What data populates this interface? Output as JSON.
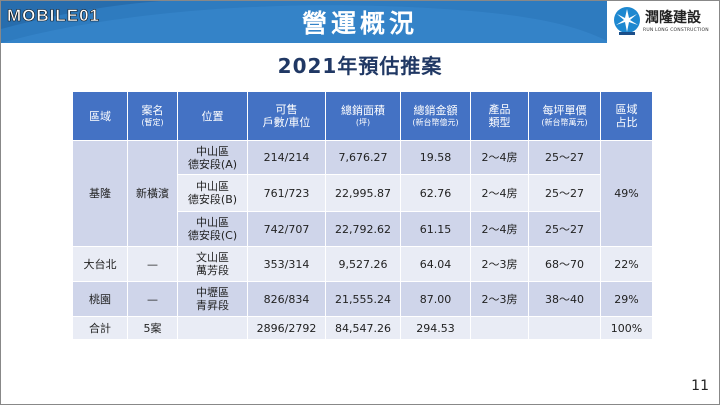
{
  "watermark": "MOBILE01",
  "header": {
    "title": "營運概況",
    "logo_name": "潤隆建設",
    "logo_sub": "RUN LONG CONSTRUCTION"
  },
  "subtitle": "2021年預估推案",
  "table": {
    "headers": [
      {
        "main": "區域",
        "sub": ""
      },
      {
        "main": "案名",
        "sub": "(暫定)"
      },
      {
        "main": "位置",
        "sub": ""
      },
      {
        "main": "可售",
        "main2": "戶數/車位",
        "sub": ""
      },
      {
        "main": "總銷面積",
        "sub": "(坪)"
      },
      {
        "main": "總銷金額",
        "sub": "(新台幣億元)"
      },
      {
        "main": "產品",
        "main2": "類型",
        "sub": ""
      },
      {
        "main": "每坪單價",
        "sub": "(新台幣萬元)"
      },
      {
        "main": "區域",
        "main2": "占比",
        "sub": ""
      }
    ],
    "rows": [
      {
        "region": "基隆",
        "project": "新橫濱",
        "loc1": "中山區",
        "loc2": "德安段(A)",
        "units": "214/214",
        "area": "7,676.27",
        "amount": "19.58",
        "type": "2～4房",
        "price": "25～27",
        "share": "49%"
      },
      {
        "loc1": "中山區",
        "loc2": "德安段(B)",
        "units": "761/723",
        "area": "22,995.87",
        "amount": "62.76",
        "type": "2～4房",
        "price": "25～27"
      },
      {
        "loc1": "中山區",
        "loc2": "德安段(C)",
        "units": "742/707",
        "area": "22,792.62",
        "amount": "61.15",
        "type": "2～4房",
        "price": "25～27"
      },
      {
        "region": "大台北",
        "project": "—",
        "loc1": "文山區",
        "loc2": "萬芳段",
        "units": "353/314",
        "area": "9,527.26",
        "amount": "64.04",
        "type": "2～3房",
        "price": "68～70",
        "share": "22%"
      },
      {
        "region": "桃園",
        "project": "—",
        "loc1": "中壢區",
        "loc2": "青昇段",
        "units": "826/834",
        "area": "21,555.24",
        "amount": "87.00",
        "type": "2～3房",
        "price": "38～40",
        "share": "29%"
      }
    ],
    "total": {
      "label": "合計",
      "project": "5案",
      "units": "2896/2792",
      "area": "84,547.26",
      "amount": "294.53",
      "share": "100%"
    }
  },
  "page_number": "11",
  "colors": {
    "header_bg": "#2e7bbf",
    "table_header": "#4472c4",
    "row_dark": "#cfd5ea",
    "row_light": "#e9ecf5",
    "subtitle": "#203864"
  }
}
